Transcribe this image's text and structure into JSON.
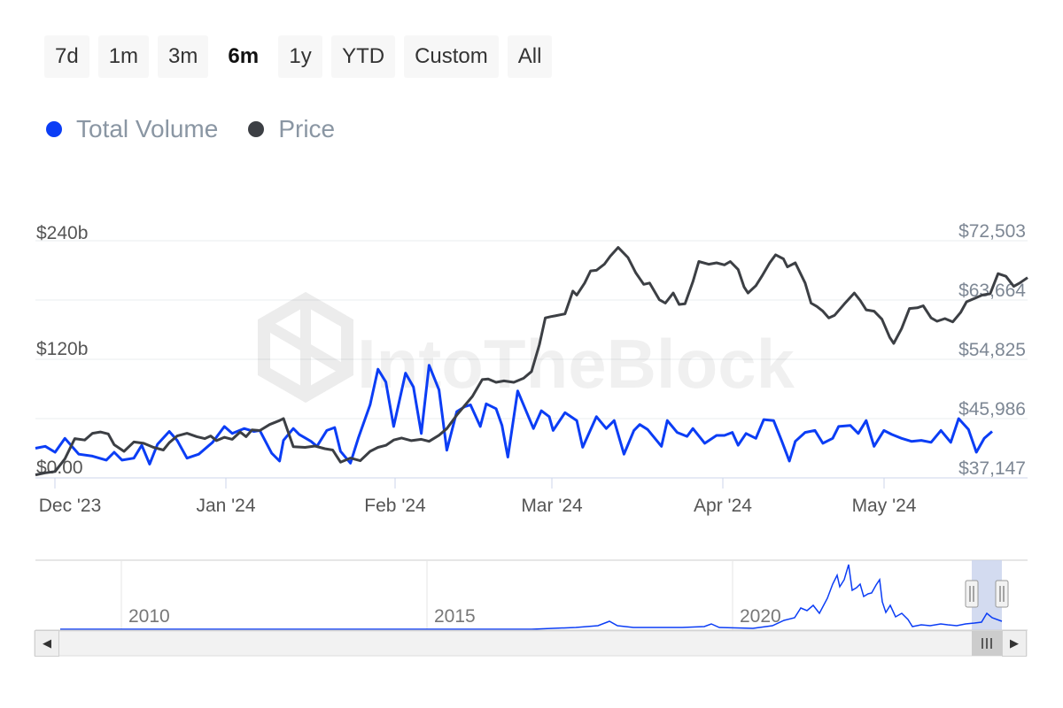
{
  "range_selector": {
    "buttons": [
      "7d",
      "1m",
      "3m",
      "6m",
      "1y",
      "YTD",
      "Custom",
      "All"
    ],
    "selected": "6m"
  },
  "legend": {
    "items": [
      {
        "label": "Total Volume",
        "color": "#0b3df5"
      },
      {
        "label": "Price",
        "color": "#3c3f44"
      }
    ]
  },
  "watermark": "IntoTheBlock",
  "chart_data": {
    "type": "line",
    "x_tick_labels": [
      "Dec '23",
      "Jan '24",
      "Feb '24",
      "Mar '24",
      "Apr '24",
      "May '24"
    ],
    "y_left": {
      "tick_labels": [
        "$0.00",
        "$120b",
        "$240b"
      ],
      "ticks": [
        0,
        120,
        240
      ],
      "range": [
        0,
        240
      ],
      "unit": "billion USD"
    },
    "y_right": {
      "tick_labels": [
        "$37,147",
        "$45,986",
        "$54,825",
        "$63,664",
        "$72,503"
      ],
      "ticks": [
        37147,
        45986,
        54825,
        63664,
        72503
      ],
      "range": [
        37147,
        72503
      ]
    },
    "series": [
      {
        "name": "Total Volume",
        "axis": "left",
        "color": "#0b3df5",
        "points": [
          [
            0,
            30
          ],
          [
            5,
            32
          ],
          [
            10,
            26
          ],
          [
            15,
            40
          ],
          [
            22,
            24
          ],
          [
            29,
            22
          ],
          [
            36,
            18
          ],
          [
            40,
            26
          ],
          [
            44,
            18
          ],
          [
            50,
            20
          ],
          [
            54,
            33
          ],
          [
            58,
            14
          ],
          [
            62,
            34
          ],
          [
            68,
            47
          ],
          [
            72,
            38
          ],
          [
            77,
            20
          ],
          [
            83,
            24
          ],
          [
            90,
            36
          ],
          [
            96,
            52
          ],
          [
            100,
            45
          ],
          [
            106,
            50
          ],
          [
            111,
            47
          ],
          [
            114,
            48
          ],
          [
            120,
            25
          ],
          [
            124,
            17
          ],
          [
            126,
            38
          ],
          [
            131,
            50
          ],
          [
            134,
            44
          ],
          [
            140,
            37
          ],
          [
            143,
            32
          ],
          [
            148,
            48
          ],
          [
            152,
            51
          ],
          [
            155,
            27
          ],
          [
            160,
            15
          ],
          [
            164,
            40
          ],
          [
            170,
            74
          ],
          [
            174,
            110
          ],
          [
            178,
            97
          ],
          [
            182,
            52
          ],
          [
            188,
            106
          ],
          [
            192,
            92
          ],
          [
            196,
            45
          ],
          [
            200,
            114
          ],
          [
            205,
            89
          ],
          [
            209,
            28
          ],
          [
            214,
            67
          ],
          [
            218,
            72
          ],
          [
            221,
            74
          ],
          [
            226,
            52
          ],
          [
            229,
            75
          ],
          [
            234,
            70
          ],
          [
            237,
            53
          ],
          [
            240,
            21
          ],
          [
            245,
            88
          ],
          [
            249,
            69
          ],
          [
            253,
            50
          ],
          [
            257,
            68
          ],
          [
            261,
            62
          ],
          [
            263,
            48
          ],
          [
            269,
            66
          ],
          [
            275,
            58
          ],
          [
            278,
            31
          ],
          [
            285,
            62
          ],
          [
            290,
            50
          ],
          [
            294,
            58
          ],
          [
            299,
            24
          ],
          [
            304,
            48
          ],
          [
            307,
            54
          ],
          [
            311,
            49
          ],
          [
            318,
            32
          ],
          [
            321,
            58
          ],
          [
            326,
            46
          ],
          [
            331,
            42
          ],
          [
            334,
            50
          ],
          [
            340,
            35
          ],
          [
            346,
            43
          ],
          [
            350,
            43
          ],
          [
            354,
            46
          ],
          [
            357,
            33
          ],
          [
            361,
            45
          ],
          [
            366,
            40
          ],
          [
            370,
            59
          ],
          [
            375,
            58
          ],
          [
            379,
            38
          ],
          [
            383,
            17
          ],
          [
            386,
            37
          ],
          [
            391,
            46
          ],
          [
            396,
            48
          ],
          [
            400,
            35
          ],
          [
            405,
            40
          ],
          [
            408,
            52
          ],
          [
            414,
            53
          ],
          [
            418,
            45
          ],
          [
            422,
            58
          ],
          [
            426,
            32
          ],
          [
            431,
            48
          ],
          [
            435,
            44
          ],
          [
            440,
            40
          ],
          [
            445,
            37
          ],
          [
            450,
            38
          ],
          [
            455,
            36
          ],
          [
            460,
            48
          ],
          [
            465,
            36
          ],
          [
            469,
            60
          ],
          [
            474,
            49
          ],
          [
            478,
            26
          ],
          [
            482,
            40
          ],
          [
            486,
            47
          ]
        ]
      },
      {
        "name": "Price",
        "axis": "right",
        "color": "#3c3f44",
        "points": [
          [
            0,
            37600
          ],
          [
            5,
            37900
          ],
          [
            10,
            38100
          ],
          [
            15,
            40000
          ],
          [
            20,
            43000
          ],
          [
            25,
            42800
          ],
          [
            29,
            43800
          ],
          [
            33,
            44000
          ],
          [
            37,
            43700
          ],
          [
            40,
            42100
          ],
          [
            45,
            41100
          ],
          [
            50,
            42500
          ],
          [
            55,
            42300
          ],
          [
            60,
            41700
          ],
          [
            65,
            41300
          ],
          [
            68,
            42400
          ],
          [
            72,
            43400
          ],
          [
            77,
            43800
          ],
          [
            82,
            43300
          ],
          [
            86,
            43000
          ],
          [
            89,
            43400
          ],
          [
            92,
            42700
          ],
          [
            96,
            43200
          ],
          [
            100,
            42900
          ],
          [
            104,
            44000
          ],
          [
            107,
            43300
          ],
          [
            110,
            44300
          ],
          [
            114,
            44200
          ],
          [
            119,
            45100
          ],
          [
            124,
            45700
          ],
          [
            126,
            46000
          ],
          [
            131,
            41800
          ],
          [
            137,
            41700
          ],
          [
            142,
            41900
          ],
          [
            147,
            41500
          ],
          [
            151,
            41300
          ],
          [
            155,
            39500
          ],
          [
            160,
            40100
          ],
          [
            165,
            39700
          ],
          [
            170,
            41100
          ],
          [
            174,
            41700
          ],
          [
            178,
            42000
          ],
          [
            182,
            42800
          ],
          [
            186,
            43100
          ],
          [
            191,
            42700
          ],
          [
            196,
            42900
          ],
          [
            200,
            42600
          ],
          [
            205,
            43500
          ],
          [
            209,
            44500
          ],
          [
            214,
            46500
          ],
          [
            218,
            47900
          ],
          [
            222,
            49300
          ],
          [
            227,
            51800
          ],
          [
            230,
            51900
          ],
          [
            234,
            51400
          ],
          [
            238,
            51600
          ],
          [
            243,
            51400
          ],
          [
            248,
            52000
          ],
          [
            252,
            53000
          ],
          [
            256,
            57000
          ],
          [
            259,
            61000
          ],
          [
            262,
            61200
          ],
          [
            264,
            61300
          ],
          [
            269,
            61600
          ],
          [
            273,
            65000
          ],
          [
            275,
            64400
          ],
          [
            279,
            66200
          ],
          [
            282,
            68000
          ],
          [
            285,
            68100
          ],
          [
            289,
            69000
          ],
          [
            292,
            70200
          ],
          [
            296,
            71500
          ],
          [
            301,
            70000
          ],
          [
            305,
            67700
          ],
          [
            309,
            66000
          ],
          [
            312,
            66200
          ],
          [
            317,
            63700
          ],
          [
            320,
            63200
          ],
          [
            324,
            64700
          ],
          [
            327,
            63000
          ],
          [
            330,
            63100
          ],
          [
            334,
            66400
          ],
          [
            337,
            69400
          ],
          [
            342,
            69000
          ],
          [
            346,
            69200
          ],
          [
            350,
            68900
          ],
          [
            353,
            69400
          ],
          [
            357,
            68200
          ],
          [
            360,
            65600
          ],
          [
            362,
            64700
          ],
          [
            366,
            65800
          ],
          [
            369,
            67200
          ],
          [
            373,
            69200
          ],
          [
            376,
            70400
          ],
          [
            380,
            69800
          ],
          [
            382,
            68600
          ],
          [
            386,
            69200
          ],
          [
            391,
            66200
          ],
          [
            394,
            63200
          ],
          [
            397,
            62700
          ],
          [
            400,
            62000
          ],
          [
            403,
            61000
          ],
          [
            406,
            61400
          ],
          [
            411,
            63100
          ],
          [
            416,
            64700
          ],
          [
            419,
            63600
          ],
          [
            422,
            62200
          ],
          [
            426,
            62000
          ],
          [
            430,
            60800
          ],
          [
            434,
            58100
          ],
          [
            436,
            57200
          ],
          [
            440,
            59400
          ],
          [
            444,
            62400
          ],
          [
            448,
            62500
          ],
          [
            451,
            62800
          ],
          [
            455,
            61000
          ],
          [
            458,
            60500
          ],
          [
            462,
            60900
          ],
          [
            466,
            60400
          ],
          [
            470,
            61800
          ],
          [
            473,
            63400
          ],
          [
            477,
            63900
          ],
          [
            481,
            64400
          ],
          [
            485,
            64600
          ],
          [
            489,
            67600
          ],
          [
            493,
            67200
          ],
          [
            497,
            65700
          ],
          [
            500,
            66200
          ],
          [
            504,
            67000
          ]
        ]
      }
    ],
    "navigator": {
      "x_tick_labels": [
        "2010",
        "2015",
        "2020"
      ],
      "series": {
        "name": "Total Volume",
        "color": "#0b3df5"
      }
    },
    "grid": true
  }
}
